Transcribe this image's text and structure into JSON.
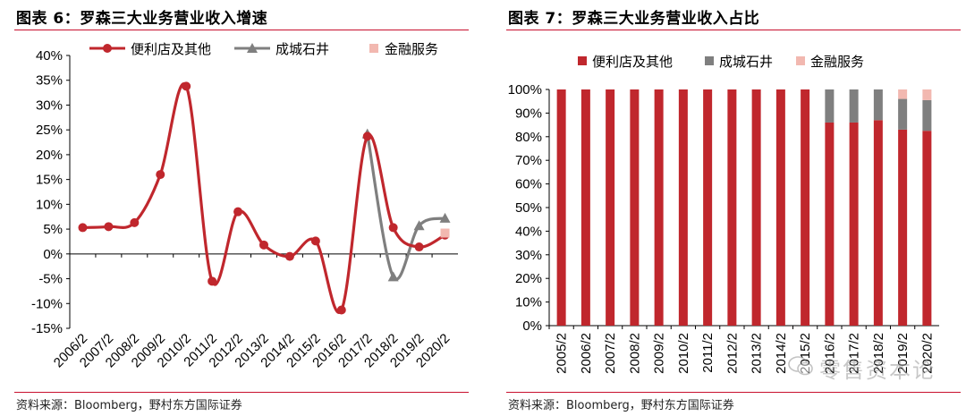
{
  "left": {
    "title": "图表 6：罗森三大业务营业收入增速",
    "source": "资料来源：Bloomberg，野村东方国际证券"
  },
  "right": {
    "title": "图表 7：罗森三大业务营业收入占比",
    "source": "资料来源：Bloomberg，野村东方国际证券",
    "watermark": "零售资本论"
  },
  "colors": {
    "red": "#c0272d",
    "gray": "#7f7f7f",
    "pink": "#f2b8b0",
    "rule": "#c8102e"
  },
  "chart_data": [
    {
      "type": "line",
      "title": "图表 6：罗森三大业务营业收入增速",
      "categories": [
        "2006/2",
        "2007/2",
        "2008/2",
        "2009/2",
        "2010/2",
        "2011/2",
        "2012/2",
        "2013/2",
        "2014/2",
        "2015/2",
        "2016/2",
        "2017/2",
        "2018/2",
        "2019/2",
        "2020/2"
      ],
      "series": [
        {
          "name": "便利店及其他",
          "values": [
            5.3,
            5.5,
            6.3,
            16,
            33.8,
            -5.5,
            8.5,
            1.8,
            -0.5,
            2.6,
            -11.3,
            23.7,
            5.3,
            1.4,
            3.8
          ]
        },
        {
          "name": "成城石井",
          "values": [
            null,
            null,
            null,
            null,
            null,
            null,
            null,
            null,
            null,
            null,
            null,
            24.2,
            -4.6,
            5.7,
            7.2
          ]
        },
        {
          "name": "金融服务",
          "values": [
            null,
            null,
            null,
            null,
            null,
            null,
            null,
            null,
            null,
            null,
            null,
            null,
            null,
            null,
            4.2
          ]
        }
      ],
      "y_tick_labels": [
        "40%",
        "35%",
        "30%",
        "25%",
        "20%",
        "15%",
        "10%",
        "5%",
        "0%",
        "-5%",
        "-10%",
        "-15%"
      ],
      "ylim": [
        -15,
        40
      ],
      "smooth": true,
      "legend": "top"
    },
    {
      "type": "bar",
      "stacked": true,
      "title": "图表 7：罗森三大业务营业收入占比",
      "categories": [
        "2005/2",
        "2006/2",
        "2007/2",
        "2008/2",
        "2009/2",
        "2010/2",
        "2011/2",
        "2012/2",
        "2013/2",
        "2014/2",
        "2015/2",
        "2016/2",
        "2017/2",
        "2018/2",
        "2019/2",
        "2020/2"
      ],
      "series": [
        {
          "name": "便利店及其他",
          "values": [
            100,
            100,
            100,
            100,
            100,
            100,
            100,
            100,
            100,
            100,
            100,
            86,
            86,
            87,
            83,
            82.5
          ]
        },
        {
          "name": "成城石井",
          "values": [
            0,
            0,
            0,
            0,
            0,
            0,
            0,
            0,
            0,
            0,
            0,
            14,
            14,
            13,
            13,
            13
          ]
        },
        {
          "name": "金融服务",
          "values": [
            0,
            0,
            0,
            0,
            0,
            0,
            0,
            0,
            0,
            0,
            0,
            0,
            0,
            0,
            4,
            4.5
          ]
        }
      ],
      "y_tick_labels": [
        "100%",
        "90%",
        "80%",
        "70%",
        "60%",
        "50%",
        "40%",
        "30%",
        "20%",
        "10%",
        "0%"
      ],
      "ylim": [
        0,
        100
      ],
      "legend": "top"
    }
  ]
}
